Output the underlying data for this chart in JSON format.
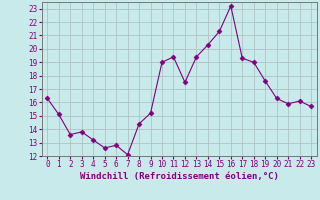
{
  "x": [
    0,
    1,
    2,
    3,
    4,
    5,
    6,
    7,
    8,
    9,
    10,
    11,
    12,
    13,
    14,
    15,
    16,
    17,
    18,
    19,
    20,
    21,
    22,
    23
  ],
  "y": [
    16.3,
    15.1,
    13.6,
    13.8,
    13.2,
    12.6,
    12.8,
    12.1,
    14.4,
    15.2,
    19.0,
    19.4,
    17.5,
    19.4,
    20.3,
    21.3,
    23.2,
    19.3,
    19.0,
    17.6,
    16.3,
    15.9,
    16.1,
    15.7
  ],
  "line_color": "#800080",
  "marker": "D",
  "marker_size": 2.5,
  "bg_color": "#c8eaea",
  "grid_color": "#aabbbb",
  "xlabel": "Windchill (Refroidissement éolien,°C)",
  "xlim": [
    -0.5,
    23.5
  ],
  "ylim": [
    12,
    23.5
  ],
  "yticks": [
    12,
    13,
    14,
    15,
    16,
    17,
    18,
    19,
    20,
    21,
    22,
    23
  ],
  "xticks": [
    0,
    1,
    2,
    3,
    4,
    5,
    6,
    7,
    8,
    9,
    10,
    11,
    12,
    13,
    14,
    15,
    16,
    17,
    18,
    19,
    20,
    21,
    22,
    23
  ],
  "tick_label_fontsize": 5.5,
  "xlabel_fontsize": 6.5,
  "label_color": "#800080"
}
